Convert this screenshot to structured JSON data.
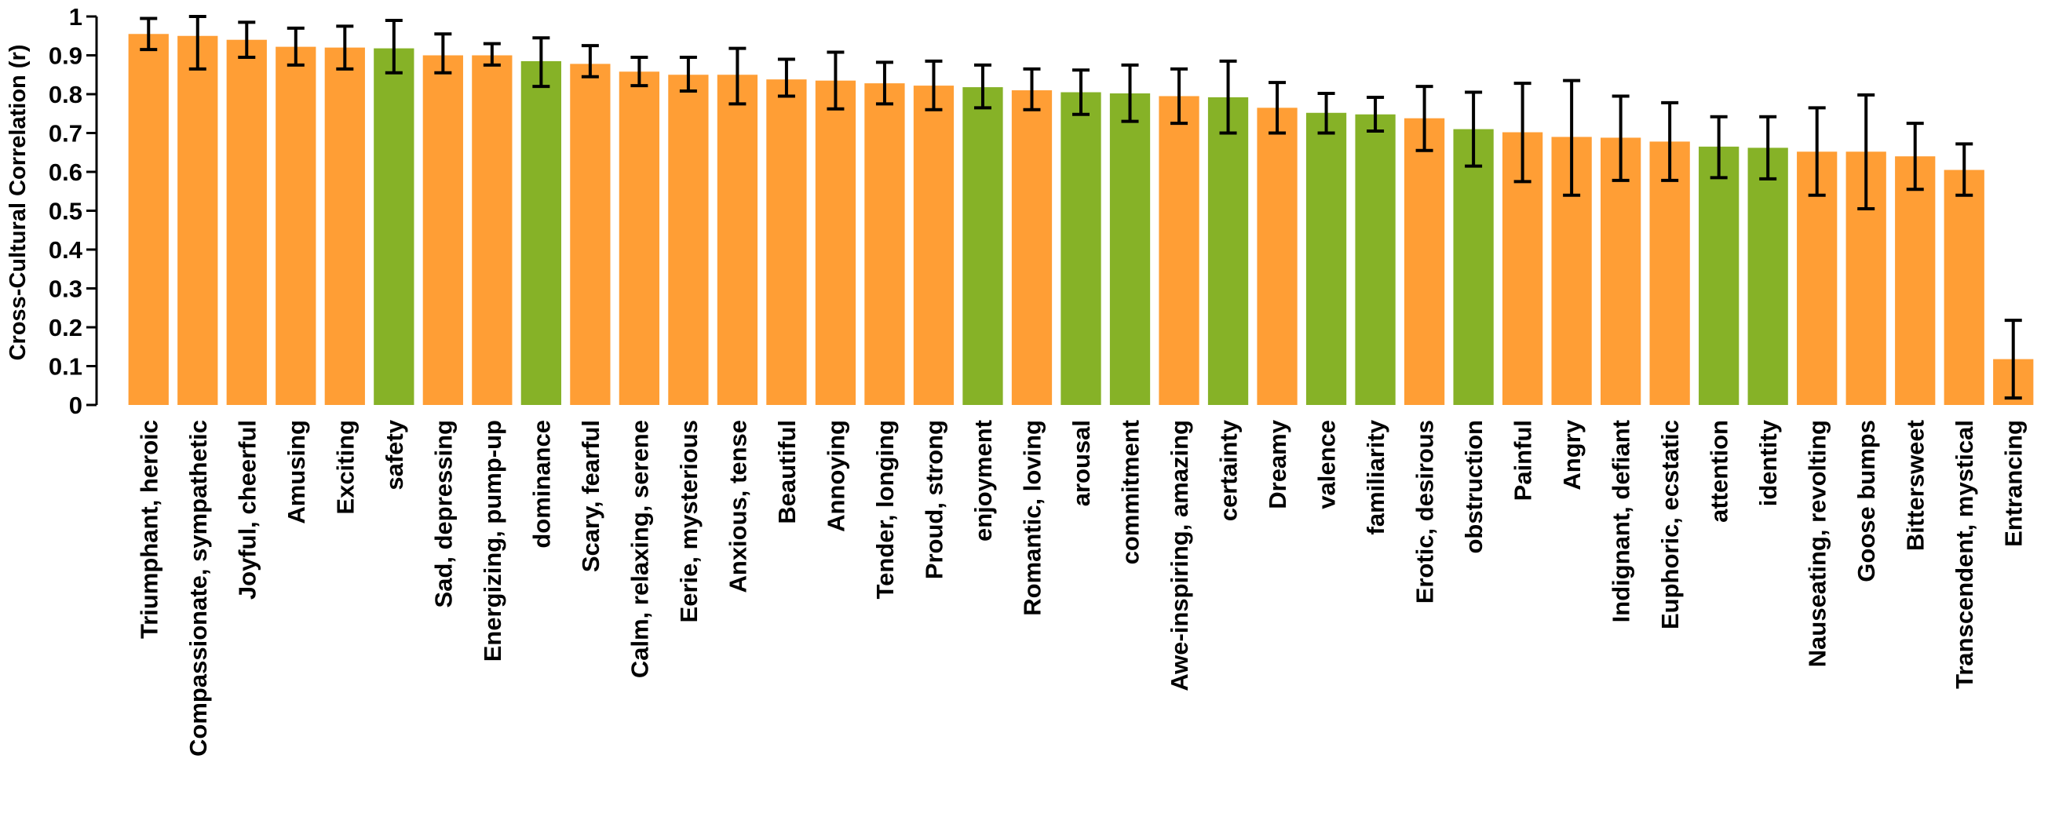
{
  "chart_data": {
    "type": "bar",
    "title": "",
    "xlabel": "",
    "ylabel": "Cross-Cultural Correlation (r)",
    "ylim": [
      0,
      1
    ],
    "yticks": [
      "0",
      "0.1",
      "0.2",
      "0.3",
      "0.4",
      "0.5",
      "0.6",
      "0.7",
      "0.8",
      "0.9",
      "1"
    ],
    "grid": false,
    "error_bars": true,
    "colors": {
      "category": "#FF9E35",
      "dimension": "#86B227",
      "errorbar": "#000000",
      "axis": "#000000"
    },
    "bars": [
      {
        "label": "Triumphant, heroic",
        "value": 0.955,
        "err_low": 0.915,
        "err_high": 0.995,
        "group": "category"
      },
      {
        "label": "Compassionate, sympathetic",
        "value": 0.95,
        "err_low": 0.865,
        "err_high": 1.0,
        "group": "category"
      },
      {
        "label": "Joyful, cheerful",
        "value": 0.94,
        "err_low": 0.895,
        "err_high": 0.985,
        "group": "category"
      },
      {
        "label": "Amusing",
        "value": 0.922,
        "err_low": 0.875,
        "err_high": 0.97,
        "group": "category"
      },
      {
        "label": "Exciting",
        "value": 0.92,
        "err_low": 0.865,
        "err_high": 0.975,
        "group": "category"
      },
      {
        "label": "safety",
        "value": 0.918,
        "err_low": 0.855,
        "err_high": 0.99,
        "group": "dimension"
      },
      {
        "label": "Sad, depressing",
        "value": 0.9,
        "err_low": 0.855,
        "err_high": 0.955,
        "group": "category"
      },
      {
        "label": "Energizing, pump-up",
        "value": 0.9,
        "err_low": 0.875,
        "err_high": 0.93,
        "group": "category"
      },
      {
        "label": "dominance",
        "value": 0.885,
        "err_low": 0.82,
        "err_high": 0.945,
        "group": "dimension"
      },
      {
        "label": "Scary, fearful",
        "value": 0.878,
        "err_low": 0.845,
        "err_high": 0.925,
        "group": "category"
      },
      {
        "label": "Calm, relaxing, serene",
        "value": 0.858,
        "err_low": 0.822,
        "err_high": 0.895,
        "group": "category"
      },
      {
        "label": "Eerie, mysterious",
        "value": 0.85,
        "err_low": 0.808,
        "err_high": 0.895,
        "group": "category"
      },
      {
        "label": "Anxious, tense",
        "value": 0.85,
        "err_low": 0.775,
        "err_high": 0.918,
        "group": "category"
      },
      {
        "label": "Beautiful",
        "value": 0.838,
        "err_low": 0.795,
        "err_high": 0.89,
        "group": "category"
      },
      {
        "label": "Annoying",
        "value": 0.835,
        "err_low": 0.762,
        "err_high": 0.908,
        "group": "category"
      },
      {
        "label": "Tender, longing",
        "value": 0.828,
        "err_low": 0.775,
        "err_high": 0.882,
        "group": "category"
      },
      {
        "label": "Proud, strong",
        "value": 0.822,
        "err_low": 0.76,
        "err_high": 0.885,
        "group": "category"
      },
      {
        "label": "enjoyment",
        "value": 0.818,
        "err_low": 0.765,
        "err_high": 0.875,
        "group": "dimension"
      },
      {
        "label": "Romantic, loving",
        "value": 0.81,
        "err_low": 0.76,
        "err_high": 0.865,
        "group": "category"
      },
      {
        "label": "arousal",
        "value": 0.805,
        "err_low": 0.748,
        "err_high": 0.862,
        "group": "dimension"
      },
      {
        "label": "commitment",
        "value": 0.802,
        "err_low": 0.73,
        "err_high": 0.875,
        "group": "dimension"
      },
      {
        "label": "Awe-inspiring, amazing",
        "value": 0.795,
        "err_low": 0.725,
        "err_high": 0.865,
        "group": "category"
      },
      {
        "label": "certainty",
        "value": 0.792,
        "err_low": 0.7,
        "err_high": 0.885,
        "group": "dimension"
      },
      {
        "label": "Dreamy",
        "value": 0.765,
        "err_low": 0.7,
        "err_high": 0.83,
        "group": "category"
      },
      {
        "label": "valence",
        "value": 0.752,
        "err_low": 0.7,
        "err_high": 0.802,
        "group": "dimension"
      },
      {
        "label": "familiarity",
        "value": 0.748,
        "err_low": 0.705,
        "err_high": 0.792,
        "group": "dimension"
      },
      {
        "label": "Erotic, desirous",
        "value": 0.738,
        "err_low": 0.655,
        "err_high": 0.82,
        "group": "category"
      },
      {
        "label": "obstruction",
        "value": 0.71,
        "err_low": 0.615,
        "err_high": 0.805,
        "group": "dimension"
      },
      {
        "label": "Painful",
        "value": 0.702,
        "err_low": 0.575,
        "err_high": 0.828,
        "group": "category"
      },
      {
        "label": "Angry",
        "value": 0.69,
        "err_low": 0.54,
        "err_high": 0.835,
        "group": "category"
      },
      {
        "label": "Indignant, defiant",
        "value": 0.688,
        "err_low": 0.578,
        "err_high": 0.795,
        "group": "category"
      },
      {
        "label": "Euphoric, ecstatic",
        "value": 0.678,
        "err_low": 0.578,
        "err_high": 0.778,
        "group": "category"
      },
      {
        "label": "attention",
        "value": 0.665,
        "err_low": 0.585,
        "err_high": 0.742,
        "group": "dimension"
      },
      {
        "label": "identity",
        "value": 0.662,
        "err_low": 0.582,
        "err_high": 0.742,
        "group": "dimension"
      },
      {
        "label": "Nauseating, revolting",
        "value": 0.652,
        "err_low": 0.54,
        "err_high": 0.765,
        "group": "category"
      },
      {
        "label": "Goose bumps",
        "value": 0.652,
        "err_low": 0.505,
        "err_high": 0.798,
        "group": "category"
      },
      {
        "label": "Bittersweet",
        "value": 0.64,
        "err_low": 0.555,
        "err_high": 0.725,
        "group": "category"
      },
      {
        "label": "Transcendent, mystical",
        "value": 0.605,
        "err_low": 0.54,
        "err_high": 0.672,
        "group": "category"
      },
      {
        "label": "Entrancing",
        "value": 0.118,
        "err_low": 0.018,
        "err_high": 0.218,
        "group": "category"
      }
    ]
  }
}
